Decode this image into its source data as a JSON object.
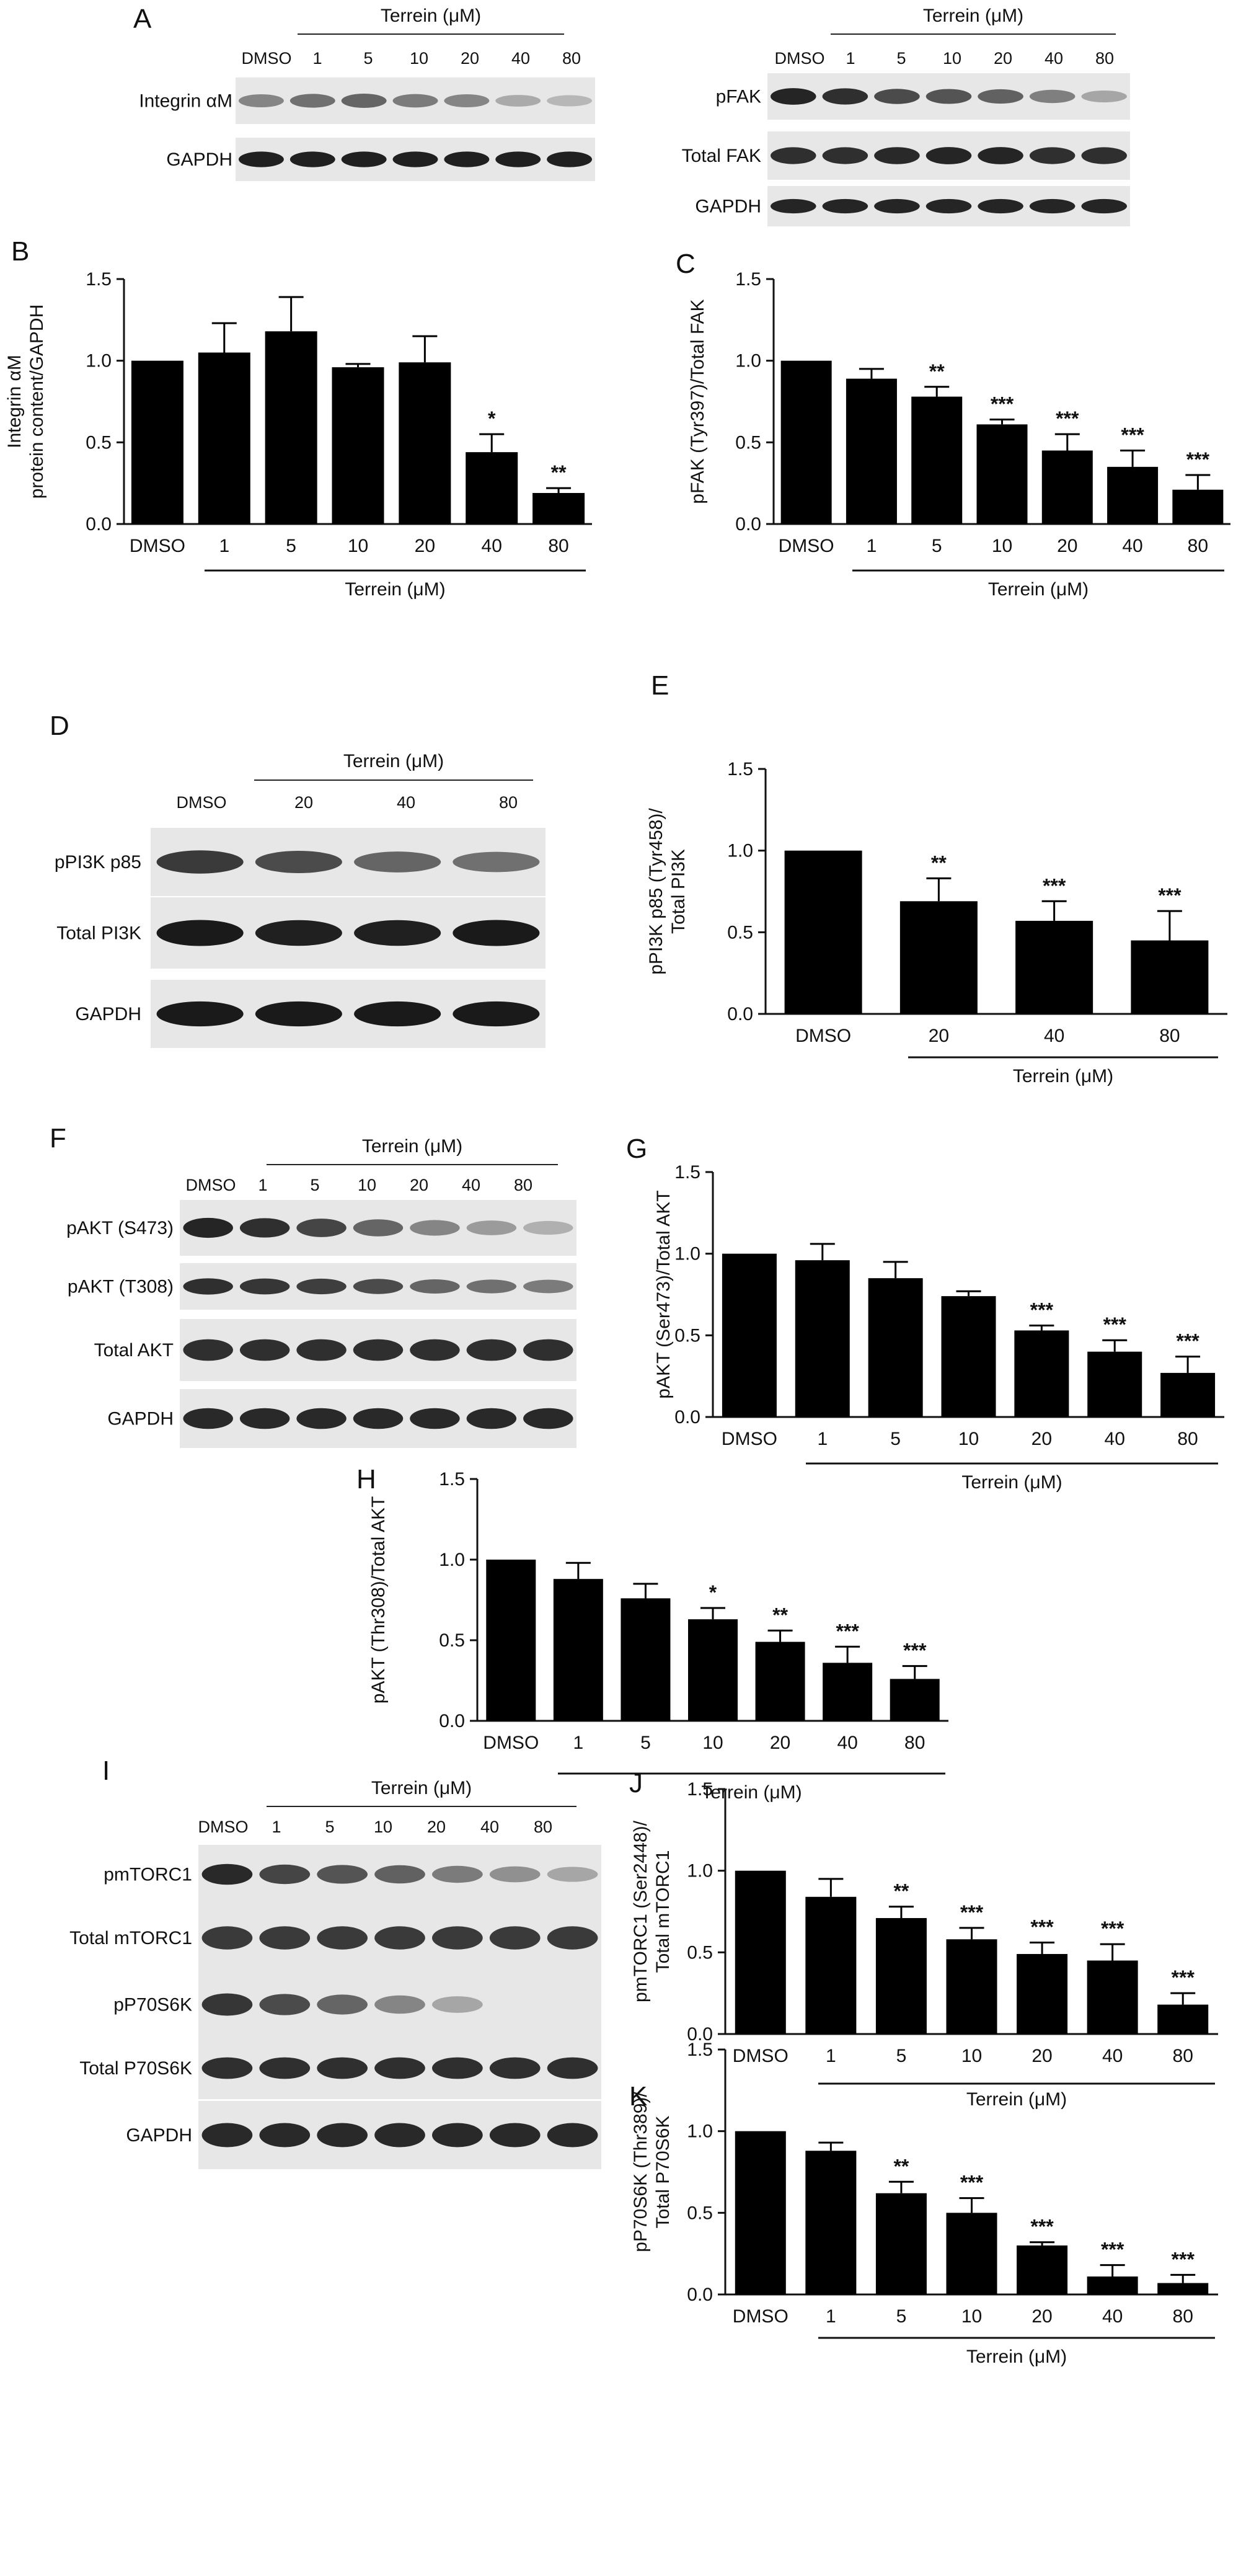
{
  "figure": {
    "group_label": "Terrein (μM)",
    "blots": [
      {
        "panel": "A",
        "lanes": [
          "DMSO",
          "1",
          "5",
          "10",
          "20",
          "40",
          "80"
        ],
        "rows": [
          {
            "label": "Integrin αM",
            "intensities": [
              0.45,
              0.55,
              0.6,
              0.5,
              0.45,
              0.28,
              0.22
            ]
          },
          {
            "label": "GAPDH",
            "intensities": [
              0.92,
              0.92,
              0.92,
              0.92,
              0.92,
              0.92,
              0.92
            ]
          }
        ]
      },
      {
        "panel": "",
        "lanes": [
          "DMSO",
          "1",
          "5",
          "10",
          "20",
          "40",
          "80"
        ],
        "rows": [
          {
            "label": "pFAK",
            "intensities": [
              0.9,
              0.85,
              0.72,
              0.68,
              0.62,
              0.48,
              0.3
            ]
          },
          {
            "label": "Total FAK",
            "intensities": [
              0.85,
              0.85,
              0.88,
              0.9,
              0.9,
              0.85,
              0.85
            ]
          },
          {
            "label": "GAPDH",
            "intensities": [
              0.9,
              0.9,
              0.9,
              0.9,
              0.9,
              0.9,
              0.9
            ]
          }
        ]
      },
      {
        "panel": "D",
        "lanes": [
          "DMSO",
          "20",
          "40",
          "80"
        ],
        "rows": [
          {
            "label": "pPI3K p85",
            "intensities": [
              0.8,
              0.72,
              0.6,
              0.55
            ]
          },
          {
            "label": "Total PI3K",
            "intensities": [
              0.95,
              0.92,
              0.92,
              0.95
            ]
          },
          {
            "label": "GAPDH",
            "intensities": [
              0.95,
              0.95,
              0.95,
              0.95
            ]
          }
        ]
      },
      {
        "panel": "F",
        "lanes": [
          "DMSO",
          "1",
          "5",
          "10",
          "20",
          "40",
          "80"
        ],
        "rows": [
          {
            "label": "pAKT (S473)",
            "intensities": [
              0.9,
              0.85,
              0.75,
              0.6,
              0.45,
              0.35,
              0.25
            ]
          },
          {
            "label": "pAKT (T308)",
            "intensities": [
              0.85,
              0.82,
              0.78,
              0.72,
              0.6,
              0.55,
              0.5
            ]
          },
          {
            "label": "Total AKT",
            "intensities": [
              0.85,
              0.85,
              0.85,
              0.85,
              0.85,
              0.85,
              0.85
            ]
          },
          {
            "label": "GAPDH",
            "intensities": [
              0.88,
              0.88,
              0.88,
              0.88,
              0.88,
              0.88,
              0.88
            ]
          }
        ]
      },
      {
        "panel": "I",
        "lanes": [
          "DMSO",
          "1",
          "5",
          "10",
          "20",
          "40",
          "80"
        ],
        "rows": [
          {
            "label": "pmTORC1",
            "intensities": [
              0.88,
              0.75,
              0.68,
              0.62,
              0.5,
              0.4,
              0.3
            ]
          },
          {
            "label": "Total mTORC1",
            "intensities": [
              0.8,
              0.8,
              0.8,
              0.8,
              0.8,
              0.8,
              0.8
            ]
          },
          {
            "label": "pP70S6K",
            "intensities": [
              0.82,
              0.72,
              0.6,
              0.45,
              0.3,
              0.0,
              0.0
            ]
          },
          {
            "label": "Total P70S6K",
            "intensities": [
              0.85,
              0.85,
              0.85,
              0.85,
              0.85,
              0.85,
              0.85
            ]
          },
          {
            "label": "GAPDH",
            "intensities": [
              0.88,
              0.88,
              0.88,
              0.88,
              0.88,
              0.88,
              0.88
            ]
          }
        ]
      }
    ]
  },
  "chart_data": [
    {
      "panel": "B",
      "type": "bar",
      "categories": [
        "DMSO",
        "1",
        "5",
        "10",
        "20",
        "40",
        "80"
      ],
      "values": [
        1.0,
        1.05,
        1.18,
        0.96,
        0.99,
        0.44,
        0.19
      ],
      "errors": [
        0,
        0.18,
        0.21,
        0.02,
        0.16,
        0.11,
        0.03
      ],
      "significance": [
        "",
        "",
        "",
        "",
        "",
        "*",
        "**"
      ],
      "ylabel": "Integrin αM protein content/GAPDH",
      "xlabel": "Terrein (μM)",
      "ylim": [
        0,
        1.5
      ],
      "yticks": [
        "0.0",
        "0.5",
        "1.0",
        "1.5"
      ]
    },
    {
      "panel": "C",
      "type": "bar",
      "categories": [
        "DMSO",
        "1",
        "5",
        "10",
        "20",
        "40",
        "80"
      ],
      "values": [
        1.0,
        0.89,
        0.78,
        0.61,
        0.45,
        0.35,
        0.21
      ],
      "errors": [
        0,
        0.06,
        0.06,
        0.03,
        0.1,
        0.1,
        0.09
      ],
      "significance": [
        "",
        "",
        "**",
        "***",
        "***",
        "***",
        "***"
      ],
      "ylabel": "pFAK (Tyr397)/Total FAK",
      "xlabel": "Terrein (μM)",
      "ylim": [
        0,
        1.5
      ],
      "yticks": [
        "0.0",
        "0.5",
        "1.0",
        "1.5"
      ]
    },
    {
      "panel": "E",
      "type": "bar",
      "categories": [
        "DMSO",
        "20",
        "40",
        "80"
      ],
      "values": [
        1.0,
        0.69,
        0.57,
        0.45
      ],
      "errors": [
        0,
        0.14,
        0.12,
        0.18
      ],
      "significance": [
        "",
        "**",
        "***",
        "***"
      ],
      "ylabel": "pPI3K p85 (Tyr458)/ Total PI3K",
      "xlabel": "Terrein (μM)",
      "ylim": [
        0,
        1.5
      ],
      "yticks": [
        "0.0",
        "0.5",
        "1.0",
        "1.5"
      ]
    },
    {
      "panel": "G",
      "type": "bar",
      "categories": [
        "DMSO",
        "1",
        "5",
        "10",
        "20",
        "40",
        "80"
      ],
      "values": [
        1.0,
        0.96,
        0.85,
        0.74,
        0.53,
        0.4,
        0.27
      ],
      "errors": [
        0,
        0.1,
        0.1,
        0.03,
        0.03,
        0.07,
        0.1
      ],
      "significance": [
        "",
        "",
        "",
        "",
        "***",
        "***",
        "***"
      ],
      "ylabel": "pAKT (Ser473)/Total AKT",
      "xlabel": "Terrein (μM)",
      "ylim": [
        0,
        1.5
      ],
      "yticks": [
        "0.0",
        "0.5",
        "1.0",
        "1.5"
      ]
    },
    {
      "panel": "H",
      "type": "bar",
      "categories": [
        "DMSO",
        "1",
        "5",
        "10",
        "20",
        "40",
        "80"
      ],
      "values": [
        1.0,
        0.88,
        0.76,
        0.63,
        0.49,
        0.36,
        0.26
      ],
      "errors": [
        0,
        0.1,
        0.09,
        0.07,
        0.07,
        0.1,
        0.08
      ],
      "significance": [
        "",
        "",
        "",
        "*",
        "**",
        "***",
        "***"
      ],
      "ylabel": "pAKT (Thr308)/Total AKT",
      "xlabel": "Terrein (μM)",
      "ylim": [
        0,
        1.5
      ],
      "yticks": [
        "0.0",
        "0.5",
        "1.0",
        "1.5"
      ]
    },
    {
      "panel": "J",
      "type": "bar",
      "categories": [
        "DMSO",
        "1",
        "5",
        "10",
        "20",
        "40",
        "80"
      ],
      "values": [
        1.0,
        0.84,
        0.71,
        0.58,
        0.49,
        0.45,
        0.18
      ],
      "errors": [
        0,
        0.11,
        0.07,
        0.07,
        0.07,
        0.1,
        0.07
      ],
      "significance": [
        "",
        "",
        "**",
        "***",
        "***",
        "***",
        "***"
      ],
      "ylabel": "pmTORC1 (Ser2448)/ Total mTORC1",
      "xlabel": "Terrein (μM)",
      "ylim": [
        0,
        1.5
      ],
      "yticks": [
        "0.0",
        "0.5",
        "1.0",
        "1.5"
      ]
    },
    {
      "panel": "K",
      "type": "bar",
      "categories": [
        "DMSO",
        "1",
        "5",
        "10",
        "20",
        "40",
        "80"
      ],
      "values": [
        1.0,
        0.88,
        0.62,
        0.5,
        0.3,
        0.11,
        0.07
      ],
      "errors": [
        0,
        0.05,
        0.07,
        0.09,
        0.02,
        0.07,
        0.05
      ],
      "significance": [
        "",
        "",
        "**",
        "***",
        "***",
        "***",
        "***"
      ],
      "ylabel": "pP70S6K (Thr389)/ Total P70S6K",
      "xlabel": "Terrein (μM)",
      "ylim": [
        0,
        1.5
      ],
      "yticks": [
        "0.0",
        "0.5",
        "1.0",
        "1.5"
      ]
    }
  ]
}
